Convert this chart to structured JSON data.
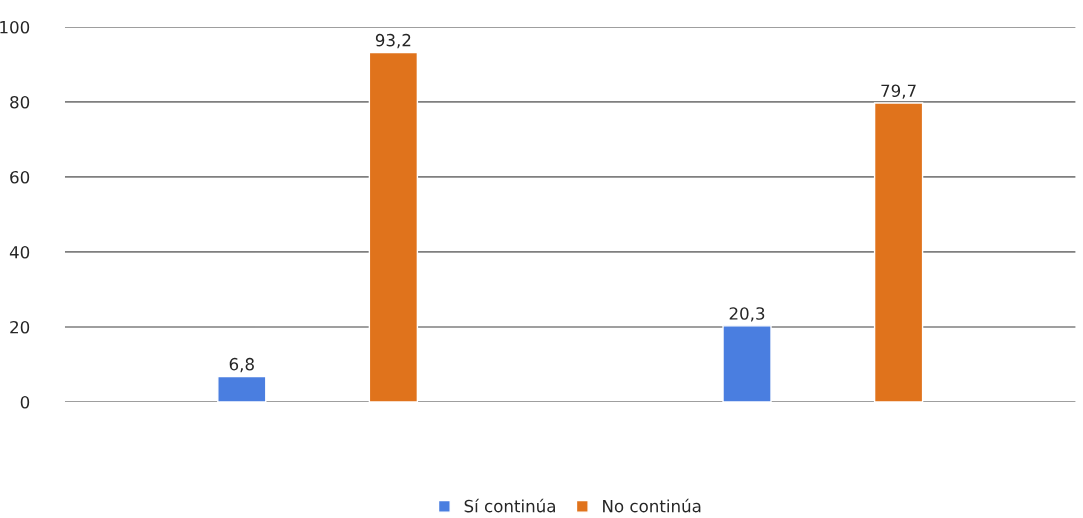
{
  "chart_data": {
    "type": "bar",
    "categories": [
      null,
      null
    ],
    "series": [
      {
        "name": "Sí continúa",
        "color": "#4a7ee0",
        "values": [
          6.8,
          20.3
        ],
        "value_labels": [
          "6,8",
          "20,3"
        ]
      },
      {
        "name": "No continúa",
        "color": "#e0731c",
        "values": [
          93.2,
          79.7
        ],
        "value_labels": [
          "93,2",
          "79,7"
        ]
      }
    ],
    "ylim": [
      0,
      100
    ],
    "yticks": [
      0,
      20,
      40,
      60,
      80,
      100
    ],
    "grid": "y",
    "legend": "bottom"
  }
}
